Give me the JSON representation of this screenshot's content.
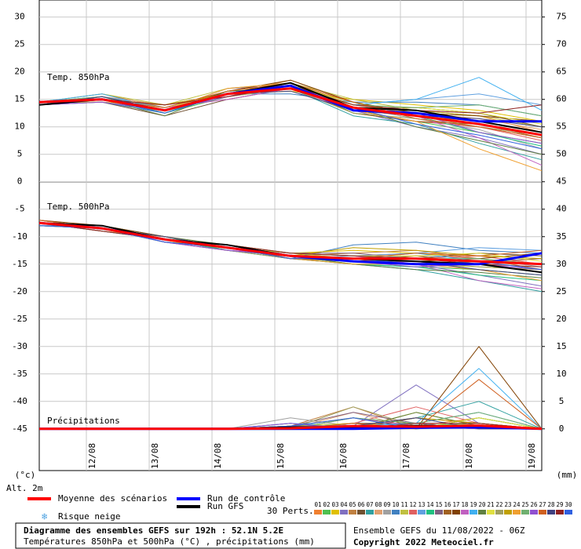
{
  "chart_data": {
    "type": "line",
    "title": "Diagramme des ensembles GEFS sur 192h : 52.1N 5.2E",
    "subtitle": "Températures 850hPa et 500hPa (°C) , précipitations (mm)",
    "run_label": "Ensemble GEFS du 11/08/2022 - 06Z",
    "copyright": "Copyright 2022 Meteociel.fr",
    "y_unit_label": "(°c)",
    "altitude_label": "Alt. 2m",
    "y2_unit_label": "(mm)",
    "panel_labels": {
      "t850": "Temp. 850hPa",
      "t500": "Temp. 500hPa",
      "precip": "Précipitations"
    },
    "snow_label": "Risque neige",
    "perturbations_label": "30 Perts.",
    "grid": true,
    "x": [
      0,
      24,
      48,
      72,
      96,
      120,
      144,
      168,
      192
    ],
    "xlim": [
      0,
      192
    ],
    "xticks": [
      {
        "value": 18,
        "label": "12/08"
      },
      {
        "value": 42,
        "label": "13/08"
      },
      {
        "value": 66,
        "label": "14/08"
      },
      {
        "value": 90,
        "label": "15/08"
      },
      {
        "value": 114,
        "label": "16/08"
      },
      {
        "value": 138,
        "label": "17/08"
      },
      {
        "value": 162,
        "label": "18/08"
      },
      {
        "value": 186,
        "label": "19/08"
      }
    ],
    "ylim": [
      -52.6,
      33.1
    ],
    "yticks": [
      30,
      25,
      20,
      15,
      10,
      5,
      0,
      -5,
      -10,
      -15,
      -20,
      -25,
      -30,
      -35,
      -40,
      -45
    ],
    "y2lim": [
      -7.6,
      78.1
    ],
    "y2ticks": [
      75,
      70,
      65,
      60,
      55,
      50,
      45,
      40,
      35,
      30,
      25,
      20,
      15,
      10,
      5,
      0
    ],
    "series": [
      {
        "name": "Moyenne des scénarios",
        "color": "#ff0000",
        "t850": [
          14.5,
          15,
          13,
          16,
          17,
          13.5,
          12,
          10.5,
          8.5
        ],
        "t500": [
          -7.5,
          -8.5,
          -10.5,
          -12,
          -13.5,
          -14,
          -14,
          -14.5,
          -15
        ],
        "precip": [
          0,
          0,
          0,
          0,
          0.1,
          0.5,
          0.4,
          0.6,
          0
        ]
      },
      {
        "name": "Run de contrôle",
        "color": "#0000ff",
        "t850": [
          14.5,
          15,
          13,
          16,
          17.5,
          13,
          12.5,
          11,
          11
        ],
        "t500": [
          -7.5,
          -8.5,
          -10.5,
          -12,
          -13.5,
          -14.5,
          -15,
          -15,
          -13
        ],
        "precip": [
          0,
          0,
          0,
          0,
          0,
          0,
          0.2,
          0.3,
          0
        ]
      },
      {
        "name": "Run GFS",
        "color": "#000000",
        "t850": [
          14,
          15,
          13,
          16,
          18,
          13.5,
          13,
          11,
          9
        ],
        "t500": [
          -7.5,
          -8,
          -10.5,
          -11.5,
          -13.5,
          -14,
          -14.5,
          -15,
          -16.5
        ],
        "precip": [
          0,
          0,
          0,
          0,
          0.3,
          0.2,
          0.6,
          0.5,
          0
        ]
      }
    ],
    "perturbations": [
      {
        "name": "01",
        "color": "#f08030",
        "t850": [
          14.5,
          15,
          13,
          16.5,
          17,
          14,
          13,
          12,
          9
        ],
        "t500": [
          -7.5,
          -8.5,
          -10.5,
          -12,
          -13,
          -13.5,
          -13,
          -14,
          -15
        ],
        "precip": [
          0,
          0,
          0,
          0,
          0.5,
          1,
          0.5,
          2,
          0
        ]
      },
      {
        "name": "02",
        "color": "#50c050",
        "t850": [
          14,
          15.5,
          12.5,
          15.5,
          18,
          12.5,
          11,
          9,
          7
        ],
        "t500": [
          -7.5,
          -8,
          -10,
          -12.5,
          -14,
          -15,
          -15.5,
          -16,
          -17
        ],
        "precip": [
          0,
          0,
          0,
          0,
          0,
          2,
          0.5,
          1,
          0
        ]
      },
      {
        "name": "03",
        "color": "#e0c000",
        "t850": [
          14.5,
          14.5,
          14,
          16,
          16.5,
          15,
          14,
          13,
          11
        ],
        "t500": [
          -7,
          -8.5,
          -11,
          -11.5,
          -13,
          -12.5,
          -13,
          -13.5,
          -14
        ],
        "precip": [
          0,
          0,
          0,
          0,
          1,
          0,
          3,
          0.5,
          0
        ]
      },
      {
        "name": "04",
        "color": "#8070c0",
        "t850": [
          14,
          15,
          13,
          17,
          17.5,
          13,
          10,
          8,
          5
        ],
        "t500": [
          -7.5,
          -9,
          -10.5,
          -12,
          -14,
          -14.5,
          -15,
          -17,
          -19
        ],
        "precip": [
          0,
          0,
          0,
          0,
          0,
          0.5,
          8,
          1,
          0
        ]
      },
      {
        "name": "05",
        "color": "#c08040",
        "t850": [
          14.5,
          16,
          13.5,
          16,
          18.5,
          14.5,
          12,
          10,
          8
        ],
        "t500": [
          -8,
          -8.5,
          -10,
          -12,
          -13.5,
          -13,
          -12.5,
          -14,
          -16
        ],
        "precip": [
          0,
          0,
          0,
          0,
          0.5,
          4,
          0,
          2,
          0
        ]
      },
      {
        "name": "06",
        "color": "#705030",
        "t850": [
          14,
          14.5,
          12,
          15,
          17,
          13.5,
          13.5,
          12.5,
          10
        ],
        "t500": [
          -7.5,
          -8,
          -10.5,
          -12.5,
          -13.5,
          -14.5,
          -14,
          -13,
          -13.5
        ],
        "precip": [
          0,
          0,
          0,
          0,
          0,
          1,
          1,
          0,
          0
        ]
      },
      {
        "name": "07",
        "color": "#30a0a0",
        "t850": [
          14.5,
          15,
          13.5,
          16.5,
          17,
          12,
          10.5,
          7,
          4
        ],
        "t500": [
          -7,
          -8.5,
          -11,
          -12,
          -14,
          -15,
          -16,
          -18,
          -20
        ],
        "precip": [
          0,
          0,
          0,
          0,
          0.5,
          0,
          2,
          5,
          0
        ]
      },
      {
        "name": "08",
        "color": "#e0a070",
        "t850": [
          14,
          15.5,
          14,
          15.5,
          18,
          14,
          12.5,
          11.5,
          9.5
        ],
        "t500": [
          -7.5,
          -8.5,
          -10.5,
          -11.5,
          -13,
          -13.5,
          -14.5,
          -15,
          -14
        ],
        "precip": [
          0,
          0,
          0,
          0,
          0,
          3,
          0,
          1,
          0
        ]
      },
      {
        "name": "09",
        "color": "#a0a0a0",
        "t850": [
          14.5,
          15,
          13,
          16,
          17.5,
          13.5,
          11.5,
          9.5,
          6
        ],
        "t500": [
          -7.5,
          -9,
          -10,
          -12,
          -13.5,
          -14,
          -13.5,
          -14,
          -15.5
        ],
        "precip": [
          0,
          0,
          0,
          0,
          2,
          0.5,
          0.5,
          0,
          0
        ]
      },
      {
        "name": "10",
        "color": "#4080c0",
        "t850": [
          14,
          14.5,
          12.5,
          16,
          16,
          14.5,
          14.5,
          14,
          12
        ],
        "t500": [
          -8,
          -8,
          -10.5,
          -12.5,
          -14,
          -11.5,
          -11,
          -12.5,
          -13
        ],
        "precip": [
          0,
          0,
          0,
          0,
          0,
          0,
          1,
          3,
          0
        ]
      },
      {
        "name": "11",
        "color": "#c0c040",
        "t850": [
          14.5,
          16,
          14,
          17,
          18,
          15,
          13,
          12,
          10
        ],
        "t500": [
          -7.5,
          -8.5,
          -11,
          -12,
          -13,
          -14,
          -15,
          -15.5,
          -16
        ],
        "precip": [
          0,
          0,
          0,
          0,
          0.5,
          2,
          0,
          0.5,
          0
        ]
      },
      {
        "name": "12",
        "color": "#e06060",
        "t850": [
          14,
          15,
          13,
          15.5,
          17,
          13,
          11,
          10,
          7.5
        ],
        "t500": [
          -7,
          -8.5,
          -10.5,
          -11.5,
          -13.5,
          -14.5,
          -14,
          -13.5,
          -15
        ],
        "precip": [
          0,
          0,
          0,
          0,
          0,
          1,
          4,
          1,
          0
        ]
      },
      {
        "name": "13",
        "color": "#60a0e0",
        "t850": [
          14.5,
          15.5,
          13.5,
          16,
          17.5,
          14,
          15,
          16,
          14
        ],
        "t500": [
          -7.5,
          -8,
          -10,
          -12,
          -14,
          -13.5,
          -13,
          -12,
          -12.5
        ],
        "precip": [
          0,
          0,
          0,
          0,
          1,
          0,
          0.5,
          0,
          0
        ]
      },
      {
        "name": "14",
        "color": "#20c080",
        "t850": [
          14,
          15,
          12.5,
          16.5,
          17,
          13.5,
          12,
          9,
          6.5
        ],
        "t500": [
          -7.5,
          -9,
          -10.5,
          -12.5,
          -13.5,
          -15,
          -15.5,
          -17,
          -18
        ],
        "precip": [
          0,
          0,
          0,
          0,
          0,
          0.5,
          0,
          2,
          0
        ]
      },
      {
        "name": "15",
        "color": "#806080",
        "t850": [
          14.5,
          14.5,
          13,
          15.5,
          18,
          14,
          13,
          11,
          9
        ],
        "t500": [
          -8,
          -8.5,
          -11,
          -12,
          -13,
          -13,
          -14,
          -14.5,
          -14
        ],
        "precip": [
          0,
          0,
          0,
          0,
          0.5,
          3,
          1,
          0,
          0
        ]
      },
      {
        "name": "16",
        "color": "#a06020",
        "t850": [
          14,
          15,
          14,
          16,
          17.5,
          12.5,
          11,
          10.5,
          8
        ],
        "t500": [
          -7.5,
          -8.5,
          -10.5,
          -11.5,
          -14,
          -14.5,
          -13.5,
          -15,
          -16.5
        ],
        "precip": [
          0,
          0,
          0,
          0,
          0,
          0,
          2,
          1,
          0
        ]
      },
      {
        "name": "17",
        "color": "#804000",
        "t850": [
          14.5,
          15.5,
          13,
          16.5,
          18.5,
          14.5,
          12.5,
          12,
          11
        ],
        "t500": [
          -7,
          -8,
          -10,
          -12,
          -13.5,
          -14,
          -14.5,
          -14,
          -13
        ],
        "precip": [
          0,
          0,
          0,
          0,
          0.5,
          1,
          0,
          15,
          0
        ]
      },
      {
        "name": "18",
        "color": "#c060c0",
        "t850": [
          14,
          15,
          13.5,
          15,
          17,
          13,
          12,
          8,
          3
        ],
        "t500": [
          -7.5,
          -8.5,
          -11,
          -12.5,
          -13,
          -13.5,
          -15,
          -18,
          -19.5
        ],
        "precip": [
          0,
          0,
          0,
          0,
          0,
          2,
          0.5,
          0,
          0
        ]
      },
      {
        "name": "19",
        "color": "#40b0f0",
        "t850": [
          14.5,
          16,
          13,
          16,
          17.5,
          14,
          15,
          19,
          13
        ],
        "t500": [
          -7.5,
          -9,
          -10.5,
          -12,
          -14,
          -14,
          -13,
          -14.5,
          -15
        ],
        "precip": [
          0,
          0,
          0,
          0,
          1,
          0.5,
          1,
          11,
          0
        ]
      },
      {
        "name": "20",
        "color": "#608040",
        "t850": [
          14,
          15,
          12,
          16.5,
          17,
          13.5,
          10,
          7.5,
          5
        ],
        "t500": [
          -8,
          -8.5,
          -10,
          -11.5,
          -13.5,
          -15,
          -16,
          -16.5,
          -17.5
        ],
        "precip": [
          0,
          0,
          0,
          0,
          0,
          0,
          3,
          0.5,
          0
        ]
      },
      {
        "name": "21",
        "color": "#e0e040",
        "t850": [
          14.5,
          14.5,
          13.5,
          16,
          18,
          14,
          13.5,
          12.5,
          10.5
        ],
        "t500": [
          -7.5,
          -8,
          -10.5,
          -12,
          -13,
          -13.5,
          -13.5,
          -13,
          -14.5
        ],
        "precip": [
          0,
          0,
          0,
          0,
          0.5,
          1,
          0,
          2,
          0
        ]
      },
      {
        "name": "22",
        "color": "#a0a060",
        "t850": [
          14,
          15.5,
          13,
          15.5,
          17,
          12.5,
          11.5,
          10,
          8.5
        ],
        "t500": [
          -7,
          -8.5,
          -11,
          -12.5,
          -14,
          -14,
          -14.5,
          -15.5,
          -16
        ],
        "precip": [
          0,
          0,
          0,
          0,
          0,
          4,
          0.5,
          0,
          0
        ]
      },
      {
        "name": "23",
        "color": "#c0a000",
        "t850": [
          14.5,
          15,
          14,
          16,
          17.5,
          14.5,
          12,
          11,
          9
        ],
        "t500": [
          -7.5,
          -8.5,
          -10.5,
          -12,
          -13.5,
          -12,
          -12.5,
          -13.5,
          -14
        ],
        "precip": [
          0,
          0,
          0,
          0,
          0,
          0.5,
          2,
          1,
          0
        ]
      },
      {
        "name": "24",
        "color": "#f0a030",
        "t850": [
          14,
          15,
          13,
          17,
          18,
          13,
          11,
          6,
          2
        ],
        "t500": [
          -7.5,
          -9,
          -10,
          -12,
          -14,
          -15,
          -15,
          -16,
          -18
        ],
        "precip": [
          0,
          0,
          0,
          0,
          0.5,
          0,
          0,
          0.5,
          0
        ]
      },
      {
        "name": "25",
        "color": "#70b070",
        "t850": [
          14.5,
          15.5,
          12.5,
          16,
          17,
          14,
          13.5,
          14,
          12
        ],
        "t500": [
          -8,
          -8.5,
          -10.5,
          -11.5,
          -13,
          -13.5,
          -14,
          -14,
          -15
        ],
        "precip": [
          0,
          0,
          0,
          0,
          0,
          2,
          1,
          3,
          0
        ]
      },
      {
        "name": "26",
        "color": "#9050d0",
        "t850": [
          14,
          14.5,
          13,
          15.5,
          17.5,
          13.5,
          12.5,
          9,
          7
        ],
        "t500": [
          -7.5,
          -8,
          -11,
          -12.5,
          -13.5,
          -14.5,
          -15.5,
          -15,
          -16
        ],
        "precip": [
          0,
          0,
          0,
          0,
          1,
          0,
          0.5,
          0,
          0
        ]
      },
      {
        "name": "27",
        "color": "#d06020",
        "t850": [
          14.5,
          15,
          13.5,
          16.5,
          18,
          14.5,
          11.5,
          10,
          8
        ],
        "t500": [
          -7,
          -8.5,
          -10.5,
          -12,
          -14,
          -14,
          -13,
          -13.5,
          -12.5
        ],
        "precip": [
          0,
          0,
          0,
          0,
          0,
          1,
          0,
          9,
          0
        ]
      },
      {
        "name": "28",
        "color": "#404080",
        "t850": [
          14,
          15.5,
          13,
          16,
          16.5,
          13,
          12,
          11.5,
          10
        ],
        "t500": [
          -7.5,
          -8.5,
          -10,
          -12,
          -13.5,
          -14.5,
          -14.5,
          -16,
          -17
        ],
        "precip": [
          0,
          0,
          0,
          0,
          0.5,
          0.5,
          2,
          0,
          0
        ]
      },
      {
        "name": "29",
        "color": "#902020",
        "t850": [
          14.5,
          15,
          14,
          15.5,
          17.5,
          14,
          13,
          12.5,
          14
        ],
        "t500": [
          -7.5,
          -9,
          -10.5,
          -11.5,
          -13,
          -13.5,
          -14,
          -15,
          -15.5
        ],
        "precip": [
          0,
          0,
          0,
          0,
          0,
          0,
          1,
          1,
          0
        ]
      },
      {
        "name": "30",
        "color": "#3060e0",
        "t850": [
          14,
          15,
          12.5,
          16,
          17,
          13.5,
          10.5,
          8.5,
          6
        ],
        "t500": [
          -8,
          -8.5,
          -11,
          -12,
          -14,
          -14,
          -15,
          -14.5,
          -16
        ],
        "precip": [
          0,
          0,
          0,
          0,
          0.5,
          2,
          0,
          0.5,
          0
        ]
      }
    ]
  }
}
